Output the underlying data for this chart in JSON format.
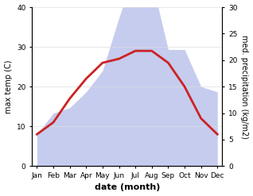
{
  "months": [
    "Jan",
    "Feb",
    "Mar",
    "Apr",
    "May",
    "Jun",
    "Jul",
    "Aug",
    "Sep",
    "Oct",
    "Nov",
    "Dec"
  ],
  "max_temp": [
    8,
    11,
    17,
    22,
    26,
    27,
    29,
    29,
    26,
    20,
    12,
    8
  ],
  "precipitation": [
    6,
    10,
    11,
    14,
    18,
    28,
    37,
    35,
    22,
    22,
    15,
    14
  ],
  "temp_color": "#cc2222",
  "precip_fill_color": "#c5ccee",
  "temp_ylim": [
    0,
    40
  ],
  "precip_ylim": [
    0,
    30
  ],
  "temp_yticks": [
    0,
    10,
    20,
    30,
    40
  ],
  "precip_yticks": [
    0,
    5,
    10,
    15,
    20,
    25,
    30
  ],
  "xlabel": "date (month)",
  "ylabel_left": "max temp (C)",
  "ylabel_right": "med. precipitation (kg/m2)",
  "bg_color": "#ffffff",
  "grid_color": "#dddddd",
  "temp_linewidth": 2.0,
  "xlabel_fontsize": 8,
  "ylabel_fontsize": 7,
  "tick_fontsize": 6.5
}
